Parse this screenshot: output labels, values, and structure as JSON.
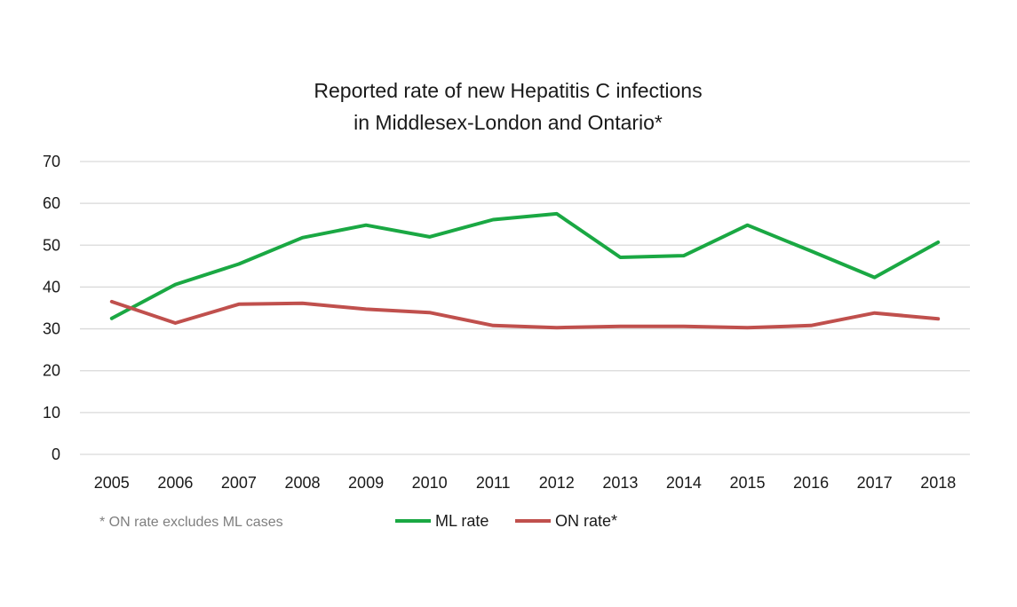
{
  "chart_data": {
    "type": "line",
    "title_lines": [
      "Reported rate of new Hepatitis C infections",
      "in Middlesex-London and Ontario*"
    ],
    "xlabel": "",
    "ylabel": "",
    "categories": [
      "2005",
      "2006",
      "2007",
      "2008",
      "2009",
      "2010",
      "2011",
      "2012",
      "2013",
      "2014",
      "2015",
      "2016",
      "2017",
      "2018"
    ],
    "ylim": [
      0,
      70
    ],
    "yticks": [
      0,
      10,
      20,
      30,
      40,
      50,
      60,
      70
    ],
    "grid": true,
    "legend_position": "bottom",
    "series": [
      {
        "name": "ML rate",
        "color": "#1aa843",
        "values": [
          32.5,
          40.6,
          45.5,
          51.8,
          54.8,
          52.0,
          56.1,
          57.5,
          47.1,
          47.5,
          54.8,
          48.6,
          42.3,
          50.7
        ]
      },
      {
        "name": "ON rate*",
        "color": "#c0504d",
        "values": [
          36.5,
          31.4,
          35.9,
          36.1,
          34.7,
          33.9,
          30.8,
          30.3,
          30.6,
          30.6,
          30.3,
          30.8,
          33.8,
          32.4
        ]
      }
    ],
    "footnote": "* ON rate excludes ML cases"
  }
}
